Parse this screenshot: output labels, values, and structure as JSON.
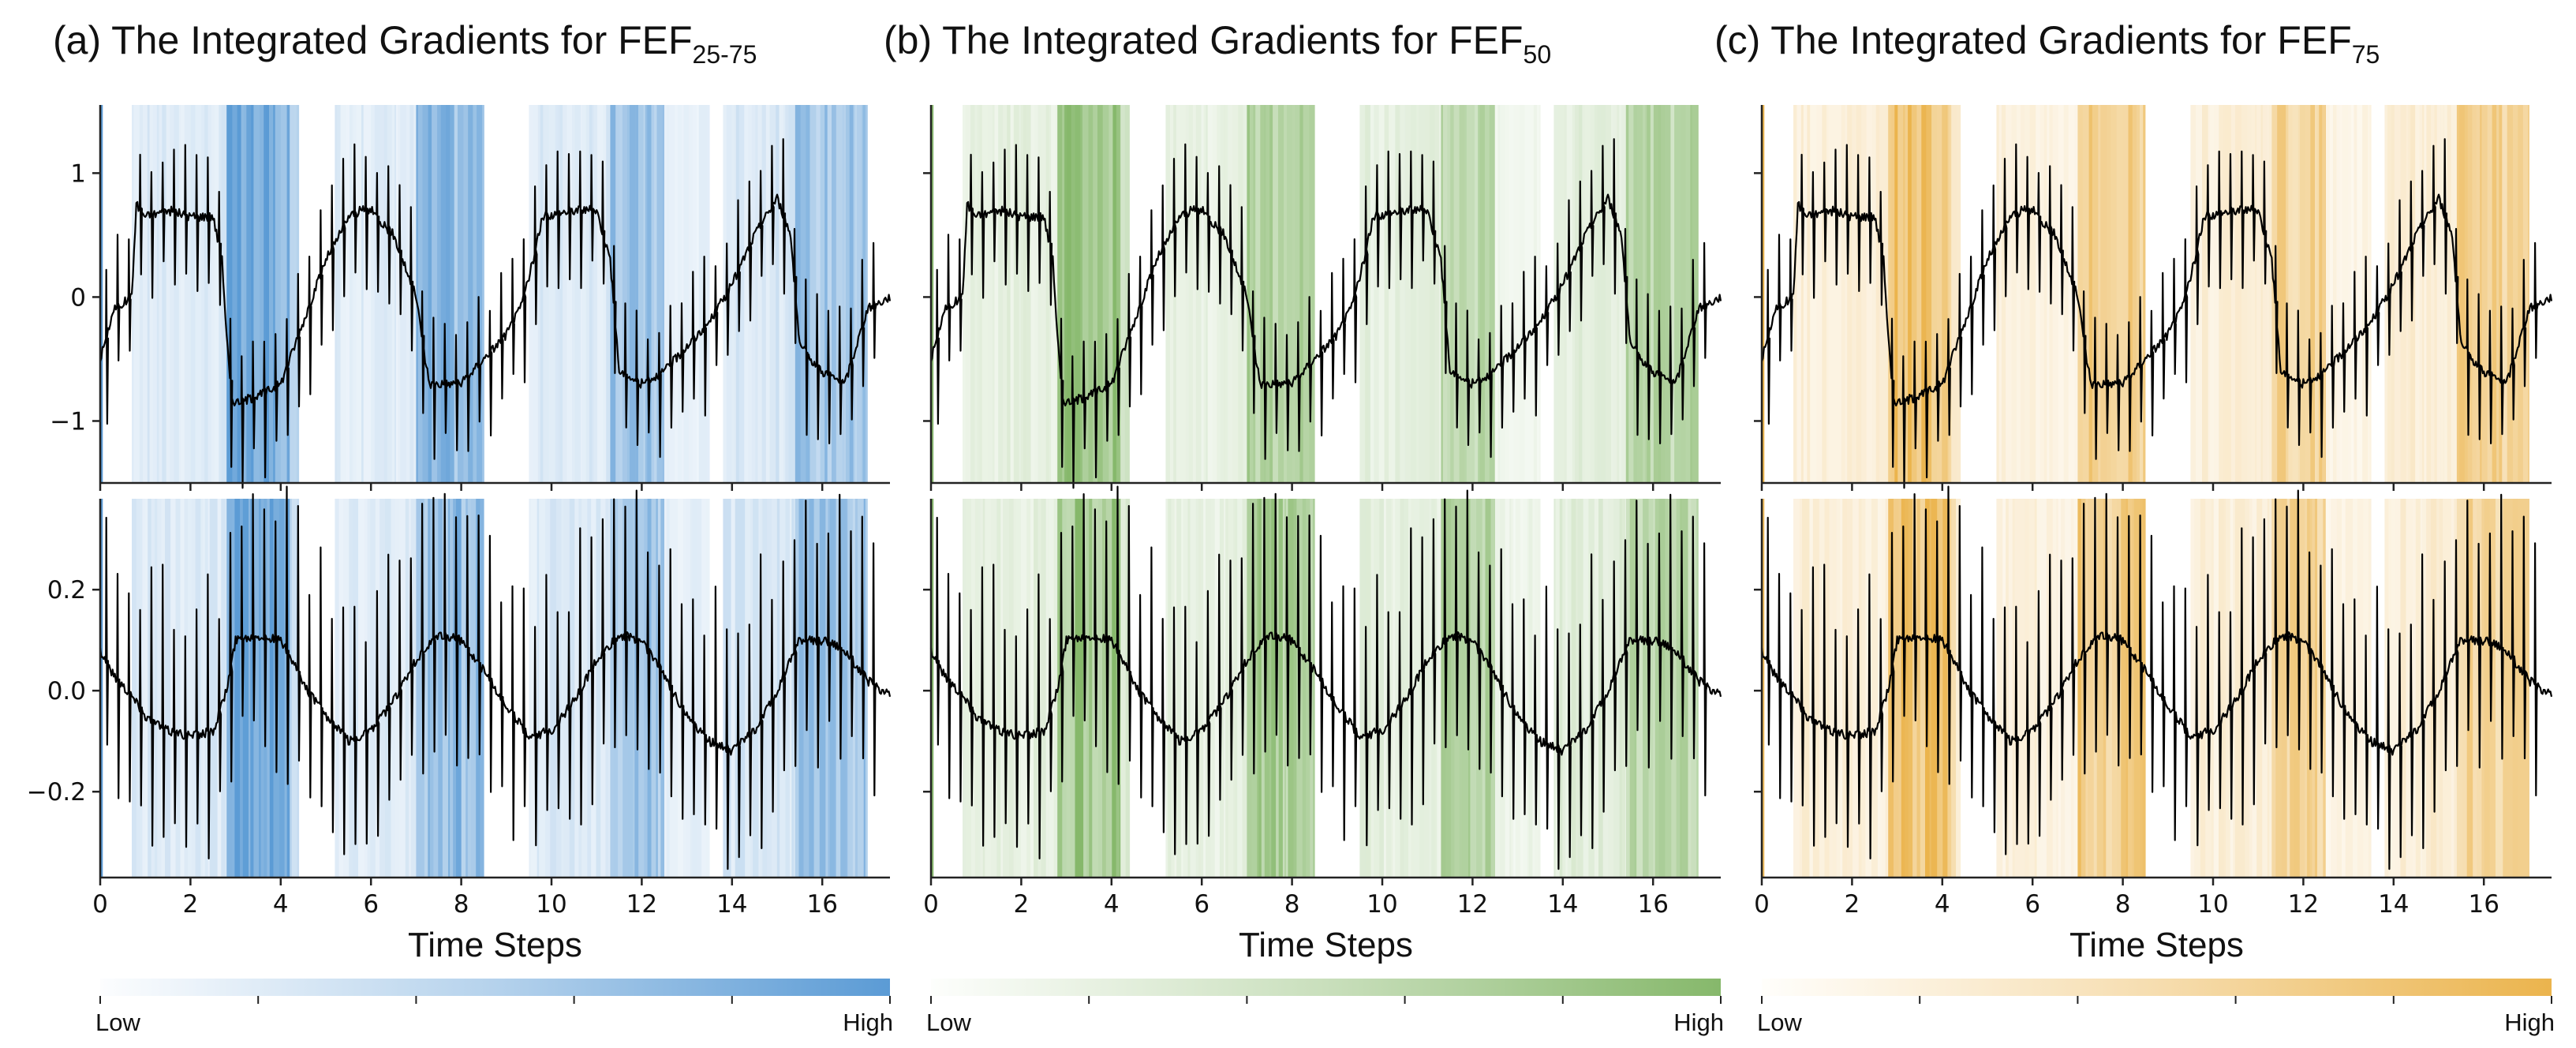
{
  "figure": {
    "panels": [
      {
        "id": "a",
        "title_prefix": "(a) The Integrated Gradients for FEF",
        "title_sub": "25-75",
        "color": "#5b9bd5",
        "colorbar": {
          "low_label": "Low",
          "high_label": "High"
        }
      },
      {
        "id": "b",
        "title_prefix": "(b) The Integrated Gradients for FEF",
        "title_sub": "50",
        "color": "#86b86b",
        "colorbar": {
          "low_label": "Low",
          "high_label": "High"
        }
      },
      {
        "id": "c",
        "title_prefix": "(c) The Integrated Gradients for FEF",
        "title_sub": "75",
        "color": "#ebb44d",
        "colorbar": {
          "low_label": "Low",
          "high_label": "High"
        }
      }
    ]
  },
  "chart_data": {
    "type": "line",
    "xlabel": "Time Steps",
    "xlim": [
      0,
      17.5
    ],
    "xticks": [
      "0",
      "2",
      "4",
      "6",
      "8",
      "10",
      "12",
      "14",
      "16"
    ],
    "top": {
      "ylim": [
        -1.5,
        1.55
      ],
      "yticks": [
        "1",
        "0",
        "−1"
      ],
      "ytick_values": [
        1,
        0,
        -1
      ],
      "series": {
        "x": [
          0,
          0.3,
          0.7,
          0.8,
          1.0,
          1.5,
          2.0,
          2.5,
          2.7,
          2.8,
          2.9,
          3.0,
          3.5,
          4.0,
          4.2,
          4.5,
          5.0,
          5.3,
          5.5,
          5.8,
          6.0,
          6.5,
          7.0,
          7.2,
          7.3,
          7.5,
          8.0,
          8.5,
          9.0,
          9.3,
          9.6,
          9.8,
          10.5,
          11.0,
          11.3,
          11.5,
          12.0,
          12.5,
          13.0,
          13.5,
          14.0,
          14.5,
          15.0,
          15.3,
          15.5,
          16.0,
          16.5,
          17.0,
          17.5
        ],
        "y": [
          -0.5,
          -0.1,
          0.0,
          0.75,
          0.65,
          0.7,
          0.65,
          0.65,
          0.3,
          -0.3,
          -0.8,
          -0.85,
          -0.8,
          -0.7,
          -0.5,
          -0.2,
          0.3,
          0.5,
          0.65,
          0.7,
          0.7,
          0.5,
          0.0,
          -0.5,
          -0.7,
          -0.7,
          -0.7,
          -0.5,
          -0.3,
          -0.1,
          0.3,
          0.65,
          0.7,
          0.7,
          0.3,
          -0.6,
          -0.7,
          -0.6,
          -0.4,
          -0.2,
          0.1,
          0.5,
          0.8,
          0.5,
          -0.4,
          -0.6,
          -0.7,
          -0.1,
          0.0
        ]
      }
    },
    "bottom": {
      "ylim": [
        -0.37,
        0.38
      ],
      "yticks": [
        "0.2",
        "0.0",
        "−0.2"
      ],
      "ytick_values": [
        0.2,
        0.0,
        -0.2
      ],
      "series": {
        "x": [
          0,
          0.3,
          0.7,
          1.0,
          1.5,
          2.0,
          2.5,
          2.8,
          3.0,
          3.5,
          4.0,
          4.3,
          4.6,
          5.0,
          5.5,
          6.0,
          6.5,
          7.0,
          7.5,
          8.0,
          8.5,
          9.0,
          9.5,
          10.0,
          10.5,
          11.0,
          11.5,
          12.0,
          12.5,
          13.0,
          13.5,
          14.0,
          14.5,
          15.0,
          15.5,
          16.0,
          16.5,
          17.0,
          17.5
        ],
        "y": [
          0.08,
          0.03,
          -0.01,
          -0.05,
          -0.08,
          -0.09,
          -0.08,
          0.0,
          0.1,
          0.11,
          0.1,
          0.05,
          0.0,
          -0.05,
          -0.1,
          -0.08,
          -0.02,
          0.06,
          0.11,
          0.1,
          0.04,
          -0.03,
          -0.09,
          -0.08,
          -0.02,
          0.06,
          0.11,
          0.1,
          0.03,
          -0.05,
          -0.1,
          -0.12,
          -0.08,
          0.0,
          0.1,
          0.1,
          0.08,
          0.02,
          -0.01
        ]
      }
    },
    "attribution_bands": [
      {
        "x0": 0.0,
        "x1": 0.05,
        "intensity": 0.9
      },
      {
        "x0": 0.7,
        "x1": 2.8,
        "intensity": 0.22
      },
      {
        "x0": 2.8,
        "x1": 4.2,
        "intensity": 0.85
      },
      {
        "x0": 4.2,
        "x1": 4.4,
        "intensity": 0.35
      },
      {
        "x0": 5.2,
        "x1": 7.0,
        "intensity": 0.2
      },
      {
        "x0": 7.0,
        "x1": 8.5,
        "intensity": 0.7
      },
      {
        "x0": 9.5,
        "x1": 11.3,
        "intensity": 0.22
      },
      {
        "x0": 11.3,
        "x1": 12.5,
        "intensity": 0.6
      },
      {
        "x0": 12.5,
        "x1": 13.5,
        "intensity": 0.15
      },
      {
        "x0": 13.8,
        "x1": 15.4,
        "intensity": 0.25
      },
      {
        "x0": 15.4,
        "x1": 17.0,
        "intensity": 0.6
      }
    ]
  }
}
